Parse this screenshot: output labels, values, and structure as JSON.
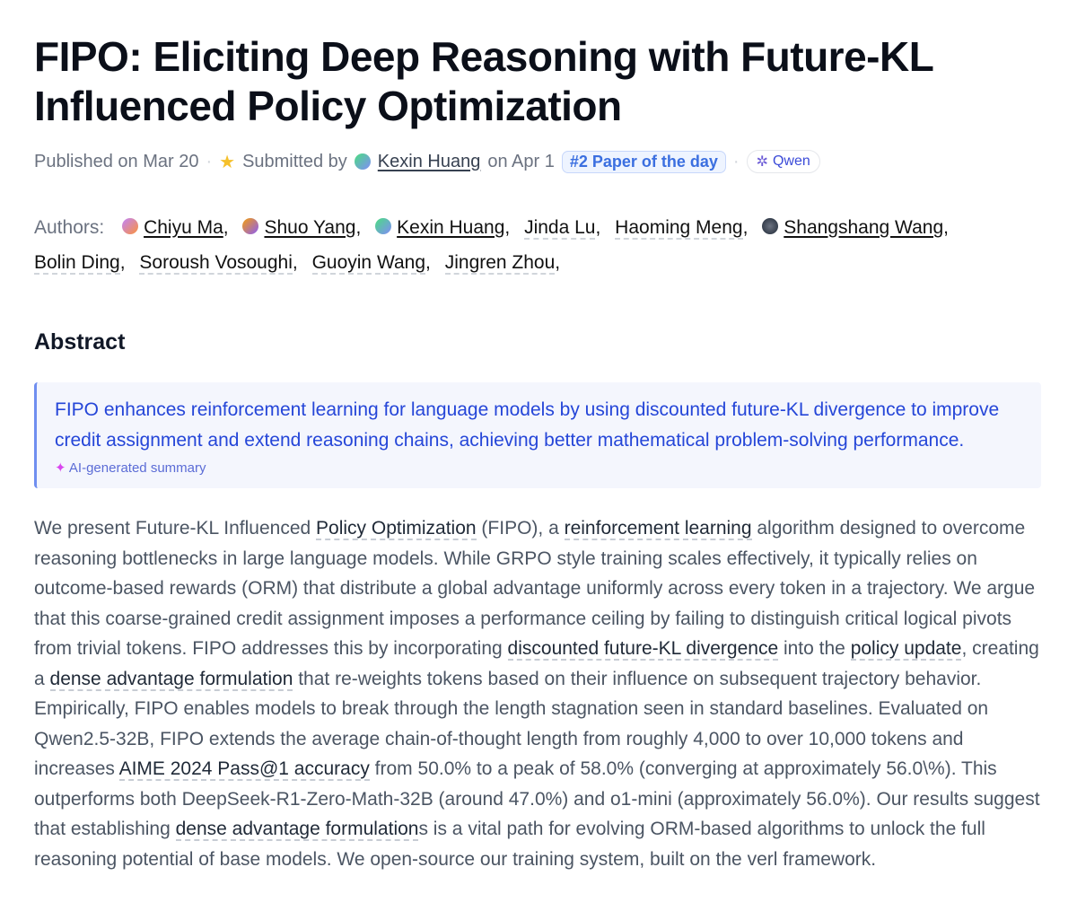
{
  "title": "FIPO: Eliciting Deep Reasoning with Future-KL Influenced Policy Optimization",
  "meta": {
    "published": "Published on Mar 20",
    "submitted_by": "Submitted by",
    "submitter": "Kexin Huang",
    "submitted_on": "on Apr 1",
    "badge": "#2 Paper of the day",
    "org": "Qwen"
  },
  "authors_label": "Authors:",
  "authors": [
    {
      "name": "Chiyu Ma",
      "avatar": "linear-gradient(135deg,#c084fc,#fb923c)",
      "linked": true
    },
    {
      "name": "Shuo Yang",
      "avatar": "linear-gradient(135deg,#f59e0b,#8b5cf6)",
      "linked": true
    },
    {
      "name": "Kexin Huang",
      "avatar": "linear-gradient(135deg,#4ade80,#818cf8)",
      "linked": true
    },
    {
      "name": "Jinda Lu",
      "linked": false
    },
    {
      "name": "Haoming Meng",
      "linked": false
    },
    {
      "name": "Shangshang Wang",
      "avatar": "radial-gradient(circle,#6b7280,#1f2937)",
      "linked": true
    },
    {
      "name": "Bolin Ding",
      "linked": false
    },
    {
      "name": "Soroush Vosoughi",
      "linked": false
    },
    {
      "name": "Guoyin Wang",
      "linked": false
    },
    {
      "name": "Jingren Zhou",
      "linked": false
    }
  ],
  "abstract_heading": "Abstract",
  "summary": {
    "text": "FIPO enhances reinforcement learning for language models by using discounted future-KL divergence to improve credit assignment and extend reasoning chains, achieving better mathematical problem-solving performance.",
    "label": "AI-generated summary"
  },
  "abstract": [
    {
      "t": "We present Future-KL Influenced "
    },
    {
      "t": "Policy Optimization",
      "link": true
    },
    {
      "t": " (FIPO), a "
    },
    {
      "t": "reinforcement learning",
      "link": true
    },
    {
      "t": " algorithm designed to overcome reasoning bottlenecks in large language models. While GRPO style training scales effectively, it typically relies on outcome-based rewards (ORM) that distribute a global advantage uniformly across every token in a trajectory. We argue that this coarse-grained credit assignment imposes a performance ceiling by failing to distinguish critical logical pivots from trivial tokens. FIPO addresses this by incorporating "
    },
    {
      "t": "discounted future-KL divergence",
      "link": true
    },
    {
      "t": " into the "
    },
    {
      "t": "policy update",
      "link": true
    },
    {
      "t": ", creating a "
    },
    {
      "t": "dense advantage formulation",
      "link": true
    },
    {
      "t": " that re-weights tokens based on their influence on subsequent trajectory behavior. Empirically, FIPO enables models to break through the length stagnation seen in standard baselines. Evaluated on Qwen2.5-32B, FIPO extends the average chain-of-thought length from roughly 4,000 to over 10,000 tokens and increases "
    },
    {
      "t": "AIME 2024 Pass@1 accuracy",
      "link": true
    },
    {
      "t": " from 50.0% to a peak of 58.0% (converging at approximately 56.0\\%). This outperforms both DeepSeek-R1-Zero-Math-32B (around 47.0%) and o1-mini (approximately 56.0%). Our results suggest that establishing "
    },
    {
      "t": "dense advantage formulation",
      "link": true
    },
    {
      "t": "s is a vital path for evolving ORM-based algorithms to unlock the full reasoning potential of base models. We open-source our training system, built on the verl framework."
    }
  ]
}
